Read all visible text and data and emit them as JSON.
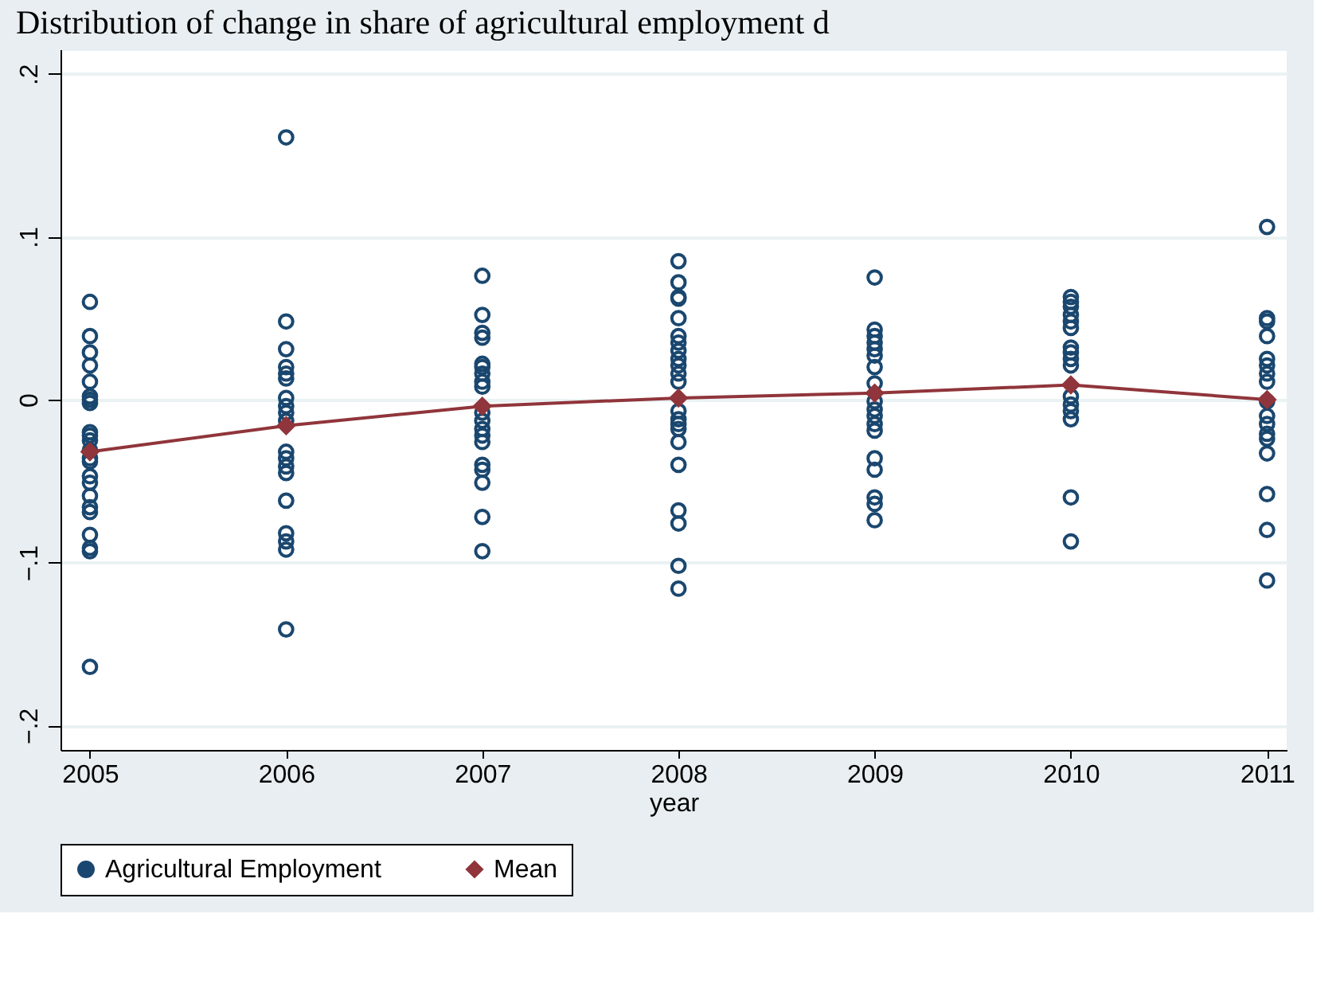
{
  "chart_data": {
    "type": "scatter",
    "title": "Distribution of change in share of agricultural employment d",
    "xlabel": "year",
    "xlim": [
      2004.85,
      2011.1
    ],
    "xticks": [
      2005,
      2006,
      2007,
      2008,
      2009,
      2010,
      2011
    ],
    "ylim": [
      -0.215,
      0.215
    ],
    "yticks": [
      {
        "value": -0.2,
        "label": "−.2"
      },
      {
        "value": -0.1,
        "label": "−.1"
      },
      {
        "value": 0,
        "label": "0"
      },
      {
        "value": 0.1,
        "label": ".1"
      },
      {
        "value": 0.2,
        "label": ".2"
      }
    ],
    "grid": "y",
    "legend": "bottom",
    "series": [
      {
        "name": "Agricultural Employment",
        "color": "#1a476f",
        "marker": "circle",
        "x": [
          2005,
          2005,
          2005,
          2005,
          2005,
          2005,
          2005,
          2005,
          2005,
          2005,
          2005,
          2005,
          2005,
          2005,
          2005,
          2005,
          2005,
          2005,
          2005,
          2005,
          2005,
          2005,
          2005,
          2006,
          2006,
          2006,
          2006,
          2006,
          2006,
          2006,
          2006,
          2006,
          2006,
          2006,
          2006,
          2006,
          2006,
          2006,
          2006,
          2006,
          2006,
          2006,
          2007,
          2007,
          2007,
          2007,
          2007,
          2007,
          2007,
          2007,
          2007,
          2007,
          2007,
          2007,
          2007,
          2007,
          2007,
          2007,
          2007,
          2007,
          2007,
          2008,
          2008,
          2008,
          2008,
          2008,
          2008,
          2008,
          2008,
          2008,
          2008,
          2008,
          2008,
          2008,
          2008,
          2008,
          2008,
          2008,
          2008,
          2008,
          2008,
          2008,
          2008,
          2009,
          2009,
          2009,
          2009,
          2009,
          2009,
          2009,
          2009,
          2009,
          2009,
          2009,
          2009,
          2009,
          2009,
          2009,
          2009,
          2009,
          2009,
          2010,
          2010,
          2010,
          2010,
          2010,
          2010,
          2010,
          2010,
          2010,
          2010,
          2010,
          2010,
          2010,
          2010,
          2010,
          2010,
          2011,
          2011,
          2011,
          2011,
          2011,
          2011,
          2011,
          2011,
          2011,
          2011,
          2011,
          2011,
          2011,
          2011,
          2011,
          2011,
          2011
        ],
        "values": [
          0.06,
          0.039,
          0.029,
          0.021,
          0.011,
          0.002,
          0.0,
          -0.002,
          -0.02,
          -0.022,
          -0.025,
          -0.036,
          -0.038,
          -0.047,
          -0.051,
          -0.059,
          -0.066,
          -0.069,
          -0.083,
          -0.091,
          -0.093,
          -0.164,
          -0.031,
          0.161,
          0.048,
          0.031,
          0.02,
          0.016,
          0.013,
          0.001,
          -0.004,
          -0.008,
          -0.032,
          -0.036,
          -0.041,
          -0.045,
          -0.062,
          -0.082,
          -0.087,
          -0.092,
          -0.141,
          -0.013,
          0.076,
          0.052,
          0.041,
          0.038,
          0.022,
          0.02,
          0.016,
          0.011,
          0.008,
          -0.008,
          -0.013,
          -0.018,
          -0.022,
          -0.026,
          -0.04,
          -0.043,
          -0.051,
          -0.072,
          -0.093,
          0.085,
          0.072,
          0.063,
          0.062,
          0.05,
          0.039,
          0.035,
          0.03,
          0.025,
          0.021,
          0.016,
          0.011,
          -0.007,
          -0.012,
          -0.015,
          -0.018,
          -0.026,
          -0.04,
          -0.068,
          -0.076,
          -0.102,
          -0.116,
          0.075,
          0.043,
          0.039,
          0.035,
          0.031,
          0.027,
          0.02,
          0.01,
          -0.001,
          -0.006,
          -0.01,
          -0.015,
          -0.019,
          -0.036,
          -0.043,
          -0.06,
          -0.064,
          -0.074,
          0.063,
          0.06,
          0.057,
          0.052,
          0.048,
          0.044,
          0.032,
          0.029,
          0.025,
          0.021,
          0.002,
          -0.003,
          -0.007,
          -0.012,
          -0.06,
          -0.087,
          0.106,
          0.05,
          0.048,
          0.039,
          0.025,
          0.021,
          0.016,
          0.011,
          -0.001,
          -0.01,
          -0.015,
          -0.021,
          -0.024,
          -0.033,
          -0.058,
          -0.08,
          -0.111
        ]
      },
      {
        "name": "Mean",
        "color": "#90353b",
        "type": "line",
        "marker": "diamond",
        "line_style": "solid",
        "x": [
          2005,
          2006,
          2007,
          2008,
          2009,
          2010,
          2011
        ],
        "values": [
          -0.032,
          -0.016,
          -0.004,
          0.001,
          0.004,
          0.009,
          0.0
        ]
      }
    ]
  }
}
